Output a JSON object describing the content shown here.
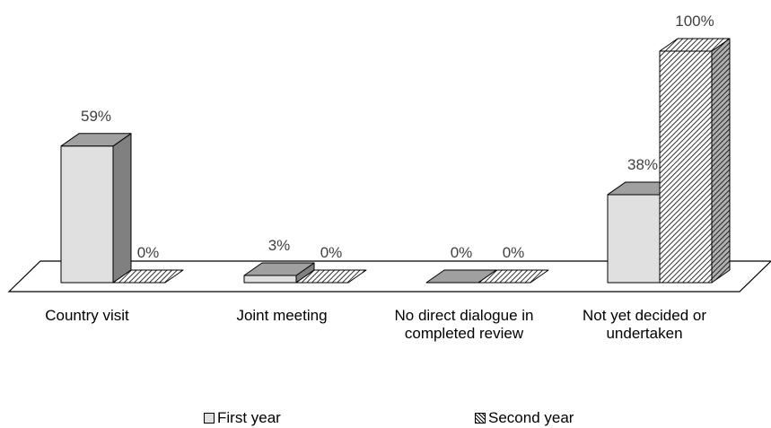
{
  "chart_data": {
    "type": "bar",
    "categories": [
      "Country visit",
      "Joint meeting",
      "No direct dialogue in completed review",
      "Not yet decided or undertaken"
    ],
    "series": [
      {
        "name": "First year",
        "values": [
          59,
          3,
          0,
          38
        ],
        "labels": [
          "59%",
          "3%",
          "0%",
          "38%"
        ]
      },
      {
        "name": "Second year",
        "values": [
          0,
          0,
          0,
          100
        ],
        "labels": [
          "0%",
          "0%",
          "0%",
          "100%"
        ]
      }
    ],
    "ylim": [
      0,
      100
    ],
    "grid": false,
    "legend_position": "bottom",
    "style": "3d-column",
    "colors": {
      "first_year": "#e0e0e0",
      "second_year_pattern": "#000000",
      "side": "#808080",
      "top": "#a0a0a0"
    }
  }
}
